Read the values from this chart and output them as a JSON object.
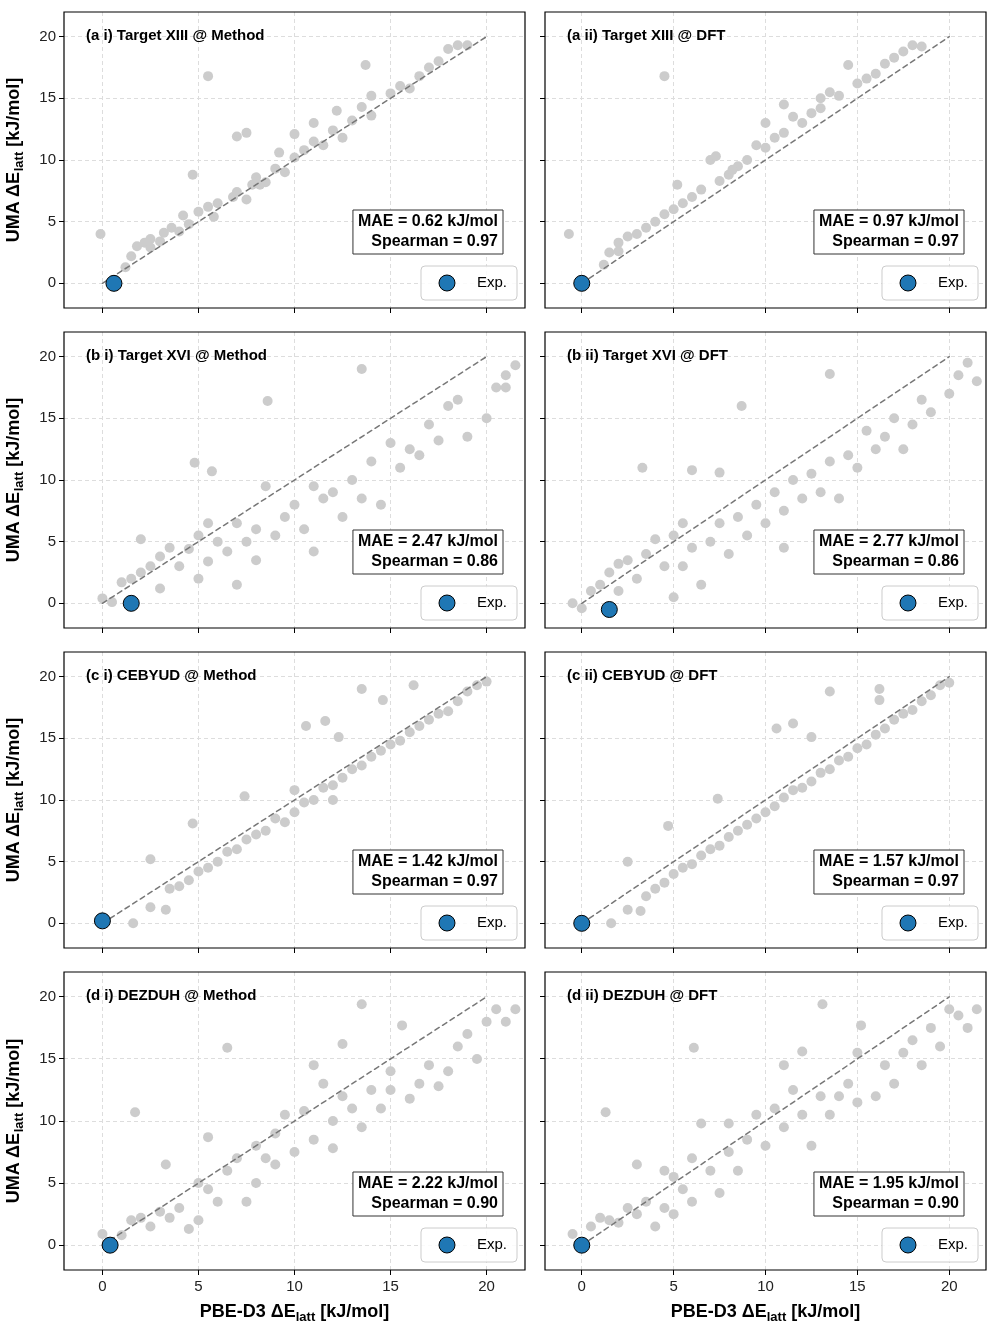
{
  "chart_data": [
    {
      "type": "scatter",
      "title": "(a i) Target XIII @ Method",
      "ylabel": "UMA ΔE$_{latt}$ [kJ/mol]",
      "xlim": [
        -2,
        22
      ],
      "ylim": [
        -2,
        22
      ],
      "xticks": [
        0,
        5,
        10,
        15,
        20
      ],
      "yticks": [
        0,
        5,
        10,
        15,
        20
      ],
      "grid": true,
      "legend": "bottom right",
      "marker": "circle",
      "tick_labels": "y",
      "annotations": [
        "MAE = 0.62 kJ/mol",
        "Spearman = 0.97"
      ],
      "series": [
        {
          "color": "#cccccc",
          "x": [
            -0.1,
            1.2,
            1.5,
            1.8,
            2.2,
            2.5,
            3,
            3.2,
            3.6,
            4,
            4.2,
            4.5,
            5,
            4.7,
            5.5,
            5.8,
            6,
            7,
            7.5,
            6.8,
            7,
            7.5,
            7.8,
            8,
            8.5,
            9,
            9.2,
            9.5,
            10,
            10,
            10.5,
            11,
            11,
            11.5,
            12,
            12.2,
            12.5,
            13,
            13.5,
            14,
            14,
            13.7,
            15,
            15.5,
            16,
            16.5,
            17,
            17.5,
            18,
            18.5,
            19,
            5.5,
            2.5,
            8.2
          ],
          "values": [
            4.0,
            1.3,
            2.2,
            3.0,
            3.3,
            3.6,
            3.4,
            4.1,
            4.5,
            4.2,
            5.5,
            4.8,
            5.8,
            8.8,
            6.2,
            5.4,
            6.5,
            11.9,
            12.2,
            7,
            7.4,
            6.8,
            8,
            8.6,
            8.2,
            9.3,
            10.6,
            9.0,
            10.2,
            12.1,
            10.8,
            11.5,
            13.0,
            11.2,
            12.4,
            14.0,
            11.8,
            13.2,
            14.3,
            13.6,
            15.2,
            17.7,
            15.4,
            16,
            15.8,
            16.8,
            17.5,
            18,
            19.0,
            19.3,
            19.3,
            16.8,
            2.9,
            8.0
          ]
        },
        {
          "type": "line",
          "color": "#777777",
          "line_style": "dashed",
          "marker": "none",
          "x": [
            0,
            20
          ],
          "values": [
            0,
            20
          ]
        },
        {
          "name": "Exp.",
          "color": "#1f77b4",
          "x": [
            0.6
          ],
          "values": [
            0
          ]
        }
      ]
    },
    {
      "type": "scatter",
      "title": "(a ii) Target XIII @ DFT",
      "xlim": [
        -2,
        22
      ],
      "ylim": [
        -2,
        22
      ],
      "xticks": [
        0,
        5,
        10,
        15,
        20
      ],
      "yticks": [
        0,
        5,
        10,
        15,
        20
      ],
      "grid": true,
      "legend": "bottom right",
      "marker": "circle",
      "tick_labels": false,
      "annotations": [
        "MAE = 0.97 kJ/mol",
        "Spearman = 0.97"
      ],
      "series": [
        {
          "color": "#cccccc",
          "x": [
            -0.7,
            1.2,
            1.5,
            2,
            2.5,
            3,
            3.5,
            4,
            4.5,
            5,
            5.2,
            5.5,
            6,
            6.5,
            7,
            7.3,
            7.5,
            8,
            8.5,
            9,
            9.5,
            10,
            10,
            10.5,
            11,
            11.5,
            12,
            12.5,
            13,
            13,
            13.5,
            14,
            14.5,
            15,
            15.5,
            16,
            16.5,
            17,
            17.5,
            18,
            18.5,
            4.5,
            2,
            8.2,
            11
          ],
          "values": [
            4.0,
            1.5,
            2.5,
            3.3,
            3.8,
            4.0,
            4.5,
            5.0,
            5.6,
            6.0,
            8.0,
            6.5,
            7.0,
            7.6,
            10.0,
            10.3,
            8.3,
            8.8,
            9.5,
            10.0,
            11.2,
            11.0,
            13.0,
            11.8,
            12.2,
            13.5,
            13.0,
            13.8,
            15.0,
            14.2,
            15.5,
            15.2,
            17.7,
            16.2,
            16.6,
            17.0,
            17.8,
            18.3,
            18.8,
            19.3,
            19.2,
            16.8,
            2.6,
            9.2,
            14.5
          ]
        },
        {
          "type": "line",
          "color": "#777777",
          "line_style": "dashed",
          "marker": "none",
          "x": [
            0,
            20
          ],
          "values": [
            0,
            20
          ]
        },
        {
          "name": "Exp.",
          "color": "#1f77b4",
          "x": [
            0
          ],
          "values": [
            0
          ]
        }
      ]
    },
    {
      "type": "scatter",
      "title": "(b i) Target XVI @ Method",
      "ylabel": "UMA ΔE$_{latt}$ [kJ/mol]",
      "xlim": [
        -2,
        22
      ],
      "ylim": [
        -2,
        22
      ],
      "xticks": [
        0,
        5,
        10,
        15,
        20
      ],
      "yticks": [
        0,
        5,
        10,
        15,
        20
      ],
      "grid": true,
      "legend": "bottom right",
      "marker": "circle",
      "tick_labels": "y",
      "annotations": [
        "MAE = 2.47 kJ/mol",
        "Spearman = 0.86"
      ],
      "series": [
        {
          "color": "#cccccc",
          "x": [
            0,
            0.5,
            1,
            1.5,
            2,
            2,
            2.5,
            3,
            3,
            3.5,
            4.8,
            4,
            4.5,
            5,
            5,
            5.5,
            5.5,
            6,
            5.7,
            6.5,
            7,
            7,
            7.5,
            8,
            8,
            8.5,
            9,
            8.6,
            9.5,
            10,
            10.5,
            11,
            11,
            11.5,
            12,
            12.5,
            13,
            13.5,
            13.5,
            14,
            14.5,
            15,
            15.5,
            16,
            16.5,
            17,
            17.5,
            18,
            18.5,
            19,
            20,
            20.5,
            21,
            21.5,
            21
          ],
          "values": [
            0.4,
            0.1,
            1.7,
            2.0,
            2.5,
            5.2,
            3.0,
            1.2,
            3.8,
            4.5,
            11.4,
            3.0,
            4.4,
            5.5,
            2.0,
            6.5,
            3.4,
            5.0,
            10.7,
            4.2,
            6.5,
            1.5,
            5.0,
            6.0,
            3.5,
            9.5,
            5.5,
            16.4,
            7.0,
            8.0,
            6.0,
            9.5,
            4.2,
            8.5,
            9.0,
            7.0,
            10.0,
            19.0,
            8.5,
            11.5,
            8.0,
            13.0,
            11.0,
            12.5,
            12.0,
            14.5,
            13.2,
            16.0,
            16.5,
            13.5,
            15.0,
            17.5,
            18.5,
            19.3,
            17.5
          ]
        },
        {
          "type": "line",
          "color": "#777777",
          "line_style": "dashed",
          "marker": "none",
          "x": [
            0,
            20
          ],
          "values": [
            0,
            20
          ]
        },
        {
          "name": "Exp.",
          "color": "#1f77b4",
          "x": [
            1.5
          ],
          "values": [
            0
          ]
        }
      ]
    },
    {
      "type": "scatter",
      "title": "(b ii) Target XVI @ DFT",
      "xlim": [
        -2,
        22
      ],
      "ylim": [
        -2,
        22
      ],
      "xticks": [
        0,
        5,
        10,
        15,
        20
      ],
      "yticks": [
        0,
        5,
        10,
        15,
        20
      ],
      "grid": true,
      "legend": "bottom right",
      "marker": "circle",
      "tick_labels": false,
      "annotations": [
        "MAE = 2.77 kJ/mol",
        "Spearman = 0.86"
      ],
      "series": [
        {
          "color": "#cccccc",
          "x": [
            -0.5,
            0,
            0.5,
            1,
            1.5,
            2,
            2,
            2.5,
            3,
            3.3,
            3.5,
            4,
            4.5,
            5,
            5,
            5.5,
            5.5,
            6,
            6,
            6.5,
            7,
            7.5,
            7.5,
            8,
            8.5,
            8.7,
            9,
            9.5,
            10,
            10.5,
            11,
            11,
            11.5,
            12,
            12.5,
            13,
            13.5,
            13.5,
            14,
            14.5,
            15,
            15.5,
            16,
            16.5,
            17,
            17.5,
            18,
            18.5,
            19,
            20,
            20.5,
            21,
            21.5
          ],
          "values": [
            0,
            -0.4,
            1.0,
            1.5,
            2.5,
            1.0,
            3.2,
            3.5,
            2.0,
            11.0,
            4.0,
            5.2,
            3.0,
            5.5,
            0.5,
            6.5,
            3.0,
            4.5,
            10.8,
            1.5,
            5.0,
            6.5,
            10.6,
            4.0,
            7.0,
            16.0,
            5.5,
            8.0,
            6.5,
            9.0,
            7.5,
            4.5,
            10.0,
            8.5,
            10.5,
            9.0,
            18.6,
            11.5,
            8.5,
            12.0,
            11.0,
            14.0,
            12.5,
            13.5,
            15.0,
            12.5,
            14.5,
            16.5,
            15.5,
            17.0,
            18.5,
            19.5,
            18.0
          ]
        },
        {
          "type": "line",
          "color": "#777777",
          "line_style": "dashed",
          "marker": "none",
          "x": [
            0,
            20
          ],
          "values": [
            0,
            20
          ]
        },
        {
          "name": "Exp.",
          "color": "#1f77b4",
          "x": [
            1.5
          ],
          "values": [
            -0.5
          ]
        }
      ]
    },
    {
      "type": "scatter",
      "title": "(c i) CEBYUD @ Method",
      "ylabel": "UMA ΔE$_{latt}$ [kJ/mol]",
      "xlim": [
        -2,
        22
      ],
      "ylim": [
        -2,
        22
      ],
      "xticks": [
        0,
        5,
        10,
        15,
        20
      ],
      "yticks": [
        0,
        5,
        10,
        15,
        20
      ],
      "grid": true,
      "legend": "bottom right",
      "marker": "circle",
      "tick_labels": "y",
      "annotations": [
        "MAE = 1.42 kJ/mol",
        "Spearman = 0.97"
      ],
      "series": [
        {
          "color": "#cccccc",
          "x": [
            1.6,
            2.5,
            3.3,
            3.5,
            4,
            4.5,
            5,
            5.5,
            6,
            6.5,
            7,
            7.5,
            8,
            8.5,
            9,
            9.5,
            10,
            10.5,
            11,
            11.5,
            12,
            12.5,
            13,
            13.5,
            14,
            14.5,
            15,
            15.5,
            16,
            16.5,
            17,
            17.5,
            18,
            18.5,
            19,
            19.5,
            20,
            2.5,
            4.7,
            7.4,
            10.6,
            11.6,
            13.5,
            14.6,
            16.2,
            12.3,
            10,
            12
          ],
          "values": [
            0,
            1.3,
            1.1,
            2.8,
            3.0,
            3.5,
            4.2,
            4.5,
            5.0,
            5.8,
            6.0,
            6.8,
            7.2,
            7.5,
            8.5,
            8.2,
            9.0,
            9.8,
            10.0,
            11.0,
            11.2,
            11.8,
            12.5,
            12.8,
            13.5,
            14.0,
            14.5,
            14.8,
            15.5,
            16.0,
            16.5,
            17.0,
            17.2,
            18.0,
            18.8,
            19.3,
            19.6,
            5.2,
            8.1,
            10.3,
            16.0,
            16.4,
            19.0,
            18.1,
            19.3,
            15.1,
            10.8,
            10.0
          ]
        },
        {
          "type": "line",
          "color": "#777777",
          "line_style": "dashed",
          "marker": "none",
          "x": [
            0,
            20
          ],
          "values": [
            0,
            20
          ]
        },
        {
          "name": "Exp.",
          "color": "#1f77b4",
          "x": [
            0
          ],
          "values": [
            0.2
          ]
        }
      ]
    },
    {
      "type": "scatter",
      "title": "(c ii) CEBYUD @ DFT",
      "xlim": [
        -2,
        22
      ],
      "ylim": [
        -2,
        22
      ],
      "xticks": [
        0,
        5,
        10,
        15,
        20
      ],
      "yticks": [
        0,
        5,
        10,
        15,
        20
      ],
      "grid": true,
      "legend": "bottom right",
      "marker": "circle",
      "tick_labels": false,
      "annotations": [
        "MAE = 1.57 kJ/mol",
        "Spearman = 0.97"
      ],
      "series": [
        {
          "color": "#cccccc",
          "x": [
            1.6,
            2.5,
            3.2,
            3.5,
            4,
            4.5,
            5,
            5.5,
            6,
            6.5,
            7,
            7.5,
            8,
            8.5,
            9,
            9.5,
            10,
            10.5,
            11,
            11.5,
            12,
            12.5,
            13,
            13.5,
            14,
            14.5,
            15,
            15.5,
            16,
            16.5,
            17,
            17.5,
            18,
            18.5,
            19,
            19.5,
            20,
            2.5,
            4.7,
            7.4,
            10.6,
            11.5,
            13.5,
            16.2,
            16.2,
            12.5
          ],
          "values": [
            0,
            1.1,
            1.0,
            2.2,
            2.8,
            3.3,
            4.0,
            4.5,
            4.8,
            5.5,
            6.0,
            6.3,
            7.0,
            7.5,
            8.0,
            8.5,
            9.0,
            9.5,
            10.2,
            10.8,
            11.0,
            11.5,
            12.2,
            12.5,
            13.2,
            13.5,
            14.2,
            14.5,
            15.3,
            15.8,
            16.5,
            17.0,
            17.3,
            18.0,
            18.5,
            19.3,
            19.5,
            5.0,
            7.9,
            10.1,
            15.8,
            16.2,
            18.8,
            19.0,
            18.1,
            15.1
          ]
        },
        {
          "type": "line",
          "color": "#777777",
          "line_style": "dashed",
          "marker": "none",
          "x": [
            0,
            20
          ],
          "values": [
            0,
            20
          ]
        },
        {
          "name": "Exp.",
          "color": "#1f77b4",
          "x": [
            0
          ],
          "values": [
            0
          ]
        }
      ]
    },
    {
      "type": "scatter",
      "title": "(d i) DEZDUH @ Method",
      "xlabel": "PBE-D3 ΔE$_{latt}$ [kJ/mol]",
      "ylabel": "UMA ΔE$_{latt}$ [kJ/mol]",
      "xlim": [
        -2,
        22
      ],
      "ylim": [
        -2,
        22
      ],
      "xticks": [
        0,
        5,
        10,
        15,
        20
      ],
      "yticks": [
        0,
        5,
        10,
        15,
        20
      ],
      "grid": true,
      "legend": "bottom right",
      "marker": "circle",
      "annotations": [
        "MAE = 2.22 kJ/mol",
        "Spearman = 0.90"
      ],
      "series": [
        {
          "color": "#cccccc",
          "x": [
            0,
            1,
            1.5,
            2,
            2.5,
            3,
            3.3,
            3.5,
            4,
            4.5,
            5,
            5,
            5.5,
            5.5,
            6,
            6.5,
            7,
            7.5,
            8,
            8,
            8.5,
            9,
            9,
            9.5,
            10,
            10.5,
            11,
            11,
            11.5,
            12,
            12,
            12.5,
            12.5,
            13,
            13.5,
            14,
            14.5,
            15,
            15,
            16,
            16.5,
            17,
            17.5,
            18,
            18.5,
            19,
            19.5,
            20,
            20.5,
            21,
            21.5,
            1.7,
            6.5,
            13.5,
            15.6
          ],
          "values": [
            0.9,
            0.8,
            2.0,
            2.2,
            1.5,
            2.7,
            6.5,
            2.2,
            3.0,
            1.3,
            5.0,
            2.0,
            4.5,
            8.7,
            3.5,
            6.0,
            7.0,
            3.5,
            8.0,
            5.0,
            7.0,
            9.0,
            6.5,
            10.5,
            7.5,
            10.8,
            8.5,
            14.5,
            13.0,
            10.0,
            7.8,
            12.0,
            16.2,
            11.0,
            9.5,
            12.5,
            11.0,
            12.5,
            14.0,
            11.8,
            13.0,
            14.5,
            12.8,
            14.0,
            16.0,
            17.0,
            15.0,
            18.0,
            19.0,
            18.0,
            19.0,
            10.7,
            15.9,
            19.4,
            17.7
          ]
        },
        {
          "type": "line",
          "color": "#777777",
          "line_style": "dashed",
          "marker": "none",
          "x": [
            0,
            20
          ],
          "values": [
            0,
            20
          ]
        },
        {
          "name": "Exp.",
          "color": "#1f77b4",
          "x": [
            0.4
          ],
          "values": [
            0
          ]
        }
      ]
    },
    {
      "type": "scatter",
      "title": "(d ii) DEZDUH @ DFT",
      "xlabel": "PBE-D3 ΔE$_{latt}$ [kJ/mol]",
      "xlim": [
        -2,
        22
      ],
      "ylim": [
        -2,
        22
      ],
      "xticks": [
        0,
        5,
        10,
        15,
        20
      ],
      "yticks": [
        0,
        5,
        10,
        15,
        20
      ],
      "grid": true,
      "legend": "bottom right",
      "marker": "circle",
      "tick_labels": "x",
      "annotations": [
        "MAE = 1.95 kJ/mol",
        "Spearman = 0.90"
      ],
      "series": [
        {
          "color": "#cccccc",
          "x": [
            -0.5,
            0.5,
            1,
            1.5,
            2,
            2.5,
            3,
            3,
            3.5,
            4,
            4.5,
            4.5,
            5,
            5,
            5.5,
            6,
            6,
            6.5,
            7,
            7.5,
            8,
            8,
            8.5,
            9,
            9.5,
            10,
            10.5,
            11,
            11,
            11.5,
            12,
            12,
            12.5,
            13,
            13.5,
            14,
            14.5,
            15,
            15,
            16,
            16.5,
            17,
            17.5,
            18,
            18.5,
            19,
            19.5,
            20,
            20.5,
            21,
            21.5,
            1.3,
            6.1,
            13.1,
            15.2
          ],
          "values": [
            0.9,
            1.5,
            2.2,
            2.0,
            1.8,
            3.0,
            2.5,
            6.5,
            3.5,
            1.5,
            3.0,
            6.0,
            5.5,
            2.5,
            4.5,
            3.5,
            7.0,
            9.8,
            6.0,
            4.2,
            7.5,
            9.8,
            6.0,
            8.5,
            10.5,
            8.0,
            11.0,
            9.5,
            14.5,
            12.5,
            10.5,
            15.6,
            8.0,
            12.0,
            10.5,
            12.0,
            13.0,
            11.5,
            15.5,
            12.0,
            14.5,
            13.0,
            15.5,
            16.5,
            14.5,
            17.5,
            16.0,
            19.0,
            18.5,
            17.5,
            19.0,
            10.7,
            15.9,
            19.4,
            17.7
          ]
        },
        {
          "type": "line",
          "color": "#777777",
          "line_style": "dashed",
          "marker": "none",
          "x": [
            0,
            20
          ],
          "values": [
            0,
            20
          ]
        },
        {
          "name": "Exp.",
          "color": "#1f77b4",
          "x": [
            0
          ],
          "values": [
            0
          ]
        }
      ]
    }
  ]
}
